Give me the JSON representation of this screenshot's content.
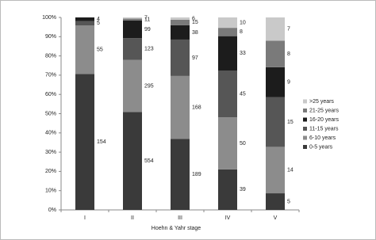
{
  "chart_data": {
    "type": "stacked-percent-bar",
    "x_label": "Hoehn & Yahr stage",
    "categories": [
      "I",
      "II",
      "III",
      "IV",
      "V"
    ],
    "series": [
      {
        "name": "0-5 years",
        "color": "#3a3a3a",
        "values": [
          154,
          554,
          189,
          39,
          5
        ]
      },
      {
        "name": "6-10 years",
        "color": "#8c8c8c",
        "values": [
          55,
          295,
          168,
          50,
          14
        ]
      },
      {
        "name": "11-15 years",
        "color": "#565656",
        "values": [
          5,
          123,
          97,
          45,
          15
        ]
      },
      {
        "name": "16-20 years",
        "color": "#1c1c1c",
        "values": [
          4,
          99,
          38,
          33,
          9
        ]
      },
      {
        "name": "21-25 years",
        "color": "#7a7a7a",
        "values": [
          0,
          11,
          15,
          8,
          8
        ]
      },
      {
        "name": ">25 years",
        "color": "#c9c9c9",
        "values": [
          0,
          7,
          6,
          10,
          7
        ]
      }
    ],
    "ylim": [
      0,
      100
    ],
    "yticks": [
      {
        "value": 0,
        "label": "0%"
      },
      {
        "value": 10,
        "label": "10%"
      },
      {
        "value": 20,
        "label": "20%"
      },
      {
        "value": 30,
        "label": "30%"
      },
      {
        "value": 40,
        "label": "40%"
      },
      {
        "value": 50,
        "label": "50%"
      },
      {
        "value": 60,
        "label": "60%"
      },
      {
        "value": 70,
        "label": "70%"
      },
      {
        "value": 80,
        "label": "80%"
      },
      {
        "value": 90,
        "label": "90%"
      },
      {
        "value": 100,
        "label": "100%"
      }
    ],
    "legend": "right"
  }
}
